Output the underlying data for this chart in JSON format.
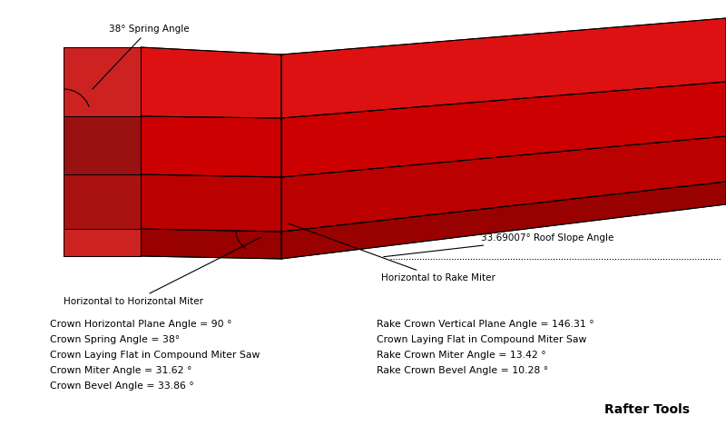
{
  "bg_color": "#ffffff",
  "figsize": [
    8.0,
    4.69
  ],
  "dpi": 100,
  "colors": {
    "bright_red": "#dd1111",
    "mid_red": "#cc0000",
    "dark_red": "#990000",
    "darker_red": "#7a0000",
    "edge": "#000000"
  },
  "annotations": {
    "spring_angle": "38° Spring Angle",
    "roof_slope": "33.69007° Roof Slope Angle",
    "horiz_to_horiz": "Horizontal to Horizontal Miter",
    "horiz_to_rake": "Horizontal to Rake Miter",
    "left_block": [
      "Crown Horizontal Plane Angle = 90 °",
      "Crown Spring Angle = 38°",
      "Crown Laying Flat in Compound Miter Saw",
      "Crown Miter Angle = 31.62 °",
      "Crown Bevel Angle = 33.86 °"
    ],
    "right_block": [
      "Rake Crown Vertical Plane Angle = 146.31 °",
      "Crown Laying Flat in Compound Miter Saw",
      "Rake Crown Miter Angle = 13.42 °",
      "Rake Crown Bevel Angle = 10.28 °"
    ],
    "rafter_tools": "Rafter Tools"
  }
}
